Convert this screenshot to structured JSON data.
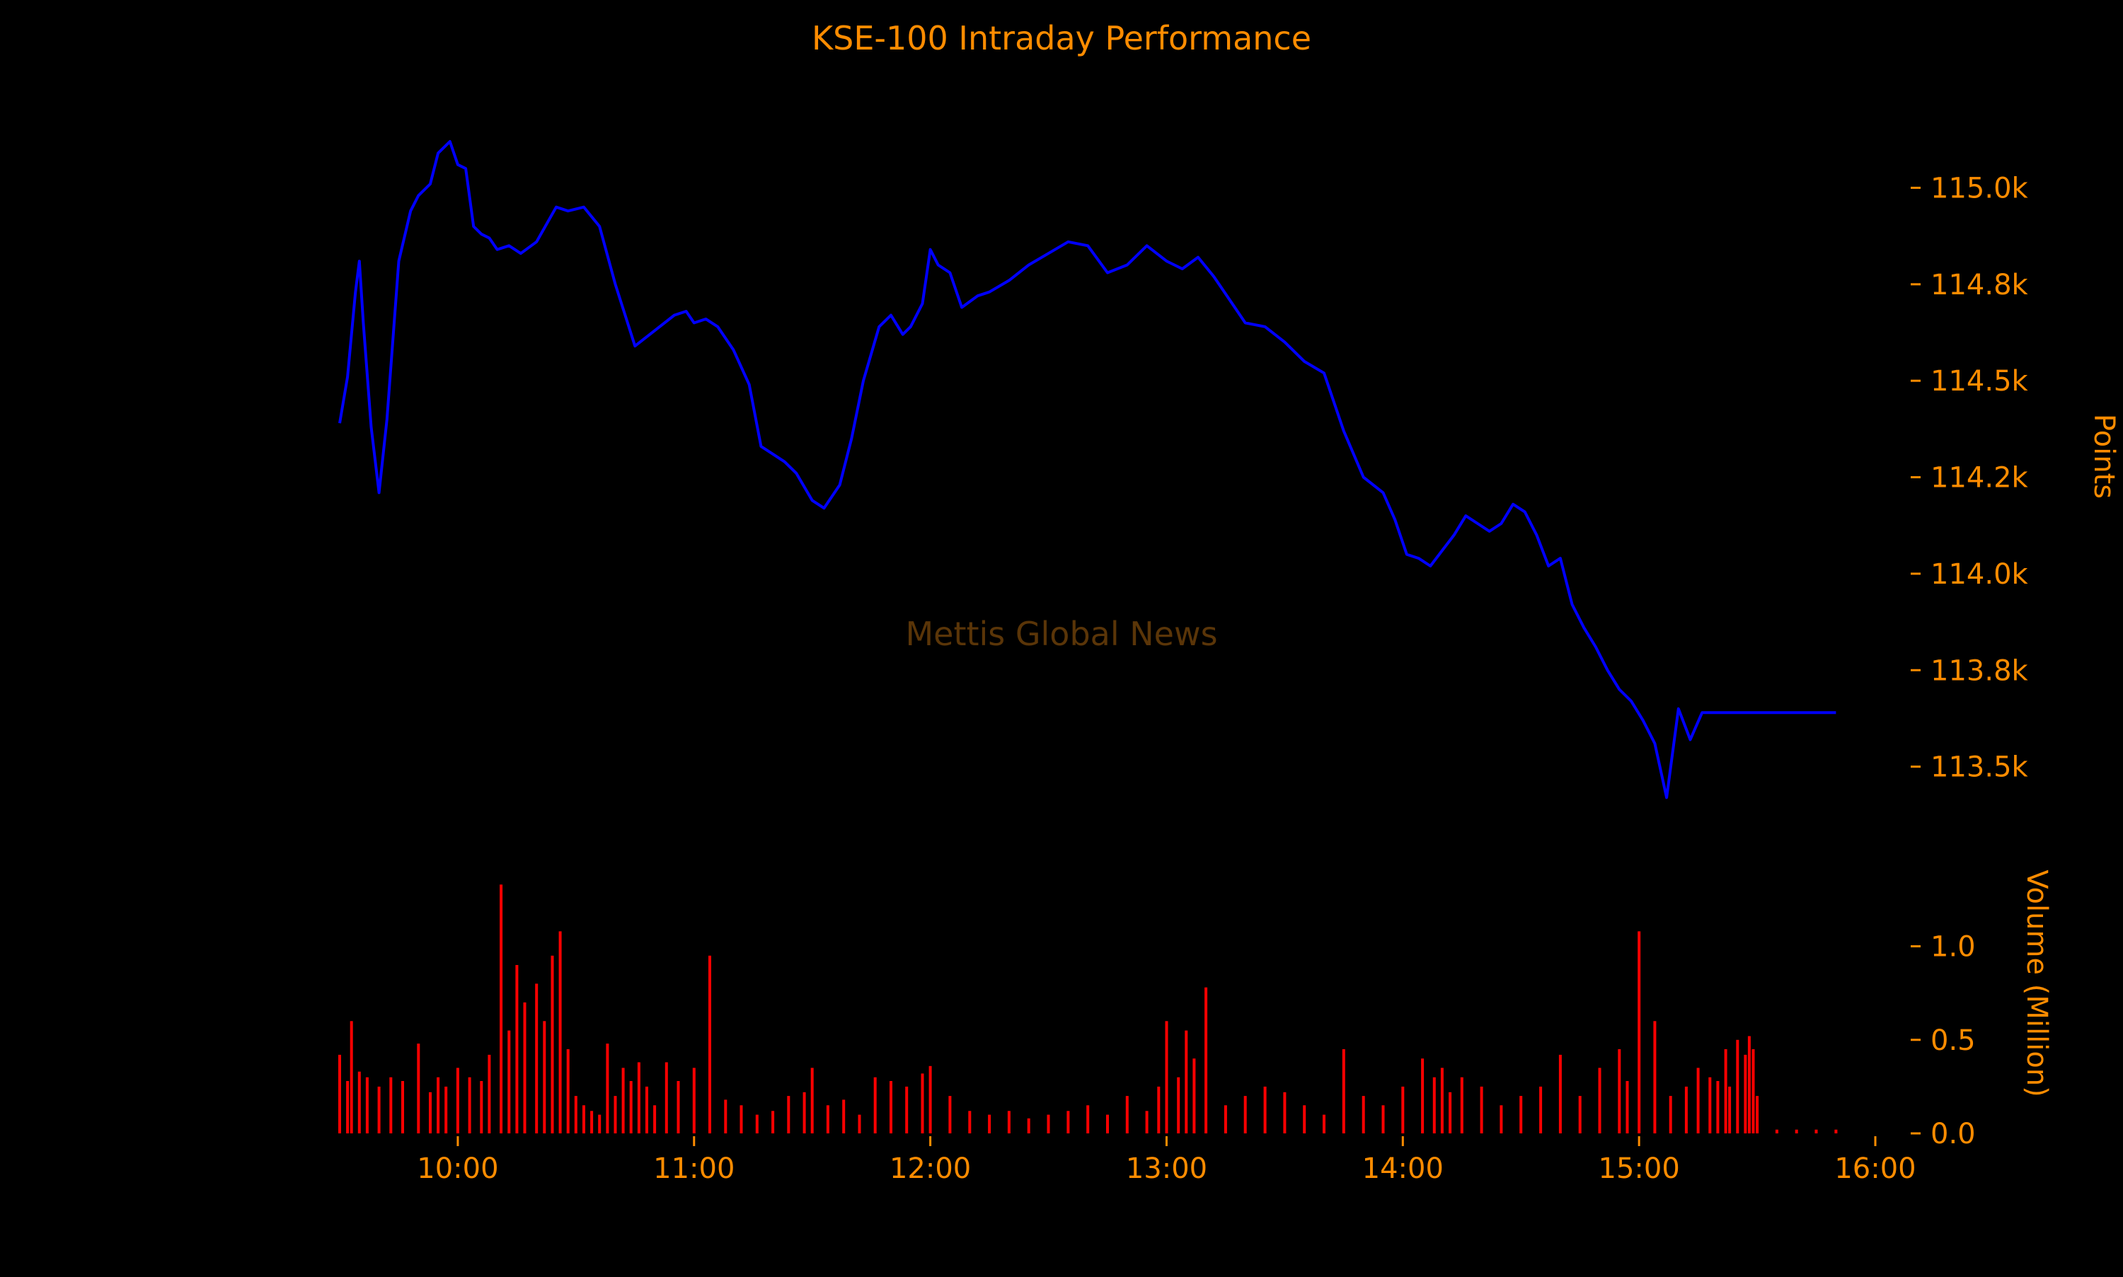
{
  "colors": {
    "background": "#000000",
    "text": "#FF8C00",
    "price_line": "#0000FF",
    "volume_bars": "#FF0000",
    "watermark": "#5A3508"
  },
  "chart_data": [
    {
      "type": "line",
      "title": "KSE-100 Intraday Performance",
      "watermark": "Mettis Global News",
      "ylabel": "Points",
      "xlabel": "",
      "x_unit": "time of day (HH:MM)",
      "xlim": [
        "09:30",
        "16:00"
      ],
      "ylim": [
        113360,
        115230
      ],
      "yticks": [
        113500,
        113750,
        114000,
        114250,
        114500,
        114750,
        115000
      ],
      "ytick_labels": [
        "113.5k",
        "113.8k",
        "114.0k",
        "114.2k",
        "114.5k",
        "114.8k",
        "115.0k"
      ],
      "grid": false,
      "y_axis_position": "right",
      "series": [
        {
          "x": [
            "09:30",
            "09:32",
            "09:34",
            "09:35",
            "09:36",
            "09:38",
            "09:40",
            "09:42",
            "09:45",
            "09:48",
            "09:50",
            "09:53",
            "09:55",
            "09:58",
            "10:00",
            "10:02",
            "10:04",
            "10:06",
            "10:08",
            "10:10",
            "10:13",
            "10:16",
            "10:20",
            "10:25",
            "10:28",
            "10:32",
            "10:36",
            "10:40",
            "10:45",
            "10:50",
            "10:55",
            "10:58",
            "11:00",
            "11:03",
            "11:06",
            "11:10",
            "11:14",
            "11:17",
            "11:20",
            "11:23",
            "11:26",
            "11:30",
            "11:33",
            "11:37",
            "11:40",
            "11:43",
            "11:47",
            "11:50",
            "11:53",
            "11:55",
            "11:58",
            "12:00",
            "12:02",
            "12:05",
            "12:08",
            "12:12",
            "12:15",
            "12:20",
            "12:25",
            "12:30",
            "12:35",
            "12:40",
            "12:45",
            "12:50",
            "12:55",
            "13:00",
            "13:04",
            "13:08",
            "13:12",
            "13:16",
            "13:20",
            "13:25",
            "13:30",
            "13:35",
            "13:40",
            "13:45",
            "13:50",
            "13:55",
            "13:58",
            "14:01",
            "14:04",
            "14:07",
            "14:10",
            "14:13",
            "14:16",
            "14:19",
            "14:22",
            "14:25",
            "14:28",
            "14:31",
            "14:34",
            "14:37",
            "14:40",
            "14:43",
            "14:46",
            "14:49",
            "14:52",
            "14:55",
            "14:58",
            "15:01",
            "15:04",
            "15:07",
            "15:10",
            "15:13",
            "15:16",
            "15:19",
            "15:22",
            "15:25",
            "15:27",
            "15:28",
            "15:29",
            "15:30",
            "15:31",
            "15:35",
            "15:40",
            "15:50"
          ],
          "y": [
            114390,
            114510,
            114730,
            114810,
            114650,
            114380,
            114210,
            114400,
            114810,
            114940,
            114980,
            115010,
            115090,
            115120,
            115060,
            115050,
            114900,
            114880,
            114870,
            114840,
            114850,
            114830,
            114860,
            114950,
            114940,
            114950,
            114900,
            114750,
            114590,
            114630,
            114670,
            114680,
            114650,
            114660,
            114640,
            114580,
            114490,
            114330,
            114310,
            114290,
            114260,
            114190,
            114170,
            114230,
            114350,
            114500,
            114640,
            114670,
            114620,
            114640,
            114700,
            114840,
            114800,
            114780,
            114690,
            114720,
            114730,
            114760,
            114800,
            114830,
            114860,
            114850,
            114780,
            114800,
            114850,
            114810,
            114790,
            114820,
            114770,
            114710,
            114650,
            114640,
            114600,
            114550,
            114520,
            114370,
            114250,
            114210,
            114140,
            114050,
            114040,
            114020,
            114060,
            114100,
            114150,
            114130,
            114110,
            114130,
            114180,
            114160,
            114100,
            114020,
            114040,
            113920,
            113860,
            113810,
            113750,
            113700,
            113670,
            113620,
            113560,
            113420,
            113650,
            113570,
            113640,
            113640,
            113640,
            113640,
            113640,
            113640,
            113640,
            113640,
            113640,
            113640,
            113640,
            113640
          ]
        }
      ]
    },
    {
      "type": "bar",
      "ylabel": "Volume (Million)",
      "xlabel": "",
      "x_unit": "time of day (HH:MM)",
      "xlim": [
        "09:30",
        "16:00"
      ],
      "xticks": [
        "10:00",
        "11:00",
        "12:00",
        "13:00",
        "14:00",
        "15:00",
        "16:00"
      ],
      "ylim": [
        0,
        1.35
      ],
      "yticks": [
        0.0,
        0.5,
        1.0
      ],
      "ytick_labels": [
        "0.0",
        "0.5",
        "1.0"
      ],
      "grid": false,
      "y_axis_position": "right",
      "series": [
        {
          "x": [
            "09:30",
            "09:32",
            "09:33",
            "09:35",
            "09:37",
            "09:40",
            "09:43",
            "09:46",
            "09:50",
            "09:53",
            "09:55",
            "09:57",
            "10:00",
            "10:03",
            "10:06",
            "10:08",
            "10:11",
            "10:13",
            "10:15",
            "10:17",
            "10:20",
            "10:22",
            "10:24",
            "10:26",
            "10:28",
            "10:30",
            "10:32",
            "10:34",
            "10:36",
            "10:38",
            "10:40",
            "10:42",
            "10:44",
            "10:46",
            "10:48",
            "10:50",
            "10:53",
            "10:56",
            "11:00",
            "11:04",
            "11:08",
            "11:12",
            "11:16",
            "11:20",
            "11:24",
            "11:28",
            "11:30",
            "11:34",
            "11:38",
            "11:42",
            "11:46",
            "11:50",
            "11:54",
            "11:58",
            "12:00",
            "12:05",
            "12:10",
            "12:15",
            "12:20",
            "12:25",
            "12:30",
            "12:35",
            "12:40",
            "12:45",
            "12:50",
            "12:55",
            "12:58",
            "13:00",
            "13:03",
            "13:05",
            "13:07",
            "13:10",
            "13:15",
            "13:20",
            "13:25",
            "13:30",
            "13:35",
            "13:40",
            "13:45",
            "13:50",
            "13:55",
            "14:00",
            "14:05",
            "14:08",
            "14:10",
            "14:12",
            "14:15",
            "14:20",
            "14:25",
            "14:30",
            "14:35",
            "14:40",
            "14:45",
            "14:50",
            "14:55",
            "14:57",
            "15:00",
            "15:04",
            "15:08",
            "15:12",
            "15:15",
            "15:18",
            "15:20",
            "15:22",
            "15:23",
            "15:25",
            "15:27",
            "15:28",
            "15:29",
            "15:30",
            "15:35",
            "15:40",
            "15:45",
            "15:50"
          ],
          "values": [
            0.42,
            0.28,
            0.6,
            0.33,
            0.3,
            0.25,
            0.3,
            0.28,
            0.48,
            0.22,
            0.3,
            0.25,
            0.35,
            0.3,
            0.28,
            0.42,
            1.33,
            0.55,
            0.9,
            0.7,
            0.8,
            0.6,
            0.95,
            1.08,
            0.45,
            0.2,
            0.15,
            0.12,
            0.1,
            0.48,
            0.2,
            0.35,
            0.28,
            0.38,
            0.25,
            0.15,
            0.38,
            0.28,
            0.35,
            0.95,
            0.18,
            0.15,
            0.1,
            0.12,
            0.2,
            0.22,
            0.35,
            0.15,
            0.18,
            0.1,
            0.3,
            0.28,
            0.25,
            0.32,
            0.36,
            0.2,
            0.12,
            0.1,
            0.12,
            0.08,
            0.1,
            0.12,
            0.15,
            0.1,
            0.2,
            0.12,
            0.25,
            0.6,
            0.3,
            0.55,
            0.4,
            0.78,
            0.15,
            0.2,
            0.25,
            0.22,
            0.15,
            0.1,
            0.45,
            0.2,
            0.15,
            0.25,
            0.4,
            0.3,
            0.35,
            0.22,
            0.3,
            0.25,
            0.15,
            0.2,
            0.25,
            0.42,
            0.2,
            0.35,
            0.45,
            0.28,
            1.08,
            0.6,
            0.2,
            0.25,
            0.35,
            0.3,
            0.28,
            0.45,
            0.25,
            0.5,
            0.42,
            0.52,
            0.45,
            0.2,
            0.02,
            0.02,
            0.02,
            0.02
          ]
        }
      ]
    }
  ]
}
